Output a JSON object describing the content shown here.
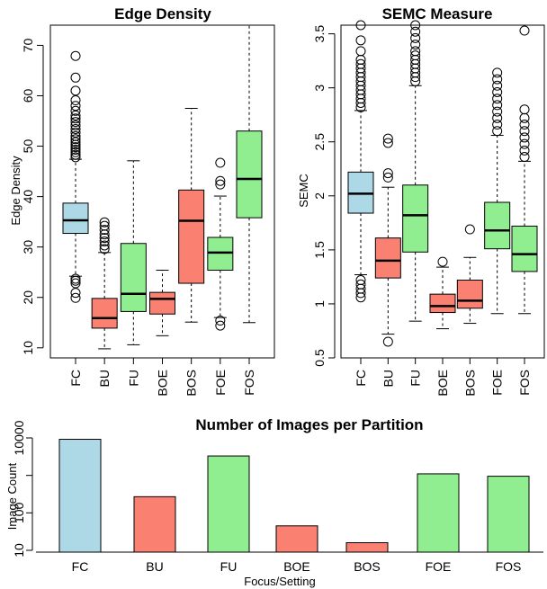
{
  "colors": {
    "FC": "#add8e6",
    "U": "#90ee90",
    "B": "#fa8072"
  },
  "chart_data": [
    {
      "type": "box",
      "title": "Edge Density",
      "ylabel": "Edge Density",
      "ylim": [
        8,
        74
      ],
      "yticks": [
        10,
        20,
        30,
        40,
        50,
        60,
        70
      ],
      "categories": [
        "FC",
        "BU",
        "FU",
        "BOE",
        "BOS",
        "FOE",
        "FOS"
      ],
      "fills": [
        "FC",
        "B",
        "U",
        "B",
        "B",
        "U",
        "U"
      ],
      "boxes": [
        {
          "q1": 32.7,
          "median": 35.3,
          "q3": 38.7,
          "low": 24.2,
          "high": 47.4,
          "outliers": [
            19.9,
            20.9,
            22.8,
            23.3,
            23.7,
            47.8,
            48.3,
            48.8,
            49.3,
            49.8,
            50.3,
            50.8,
            51.4,
            52.0,
            52.7,
            53.4,
            54.1,
            54.8,
            55.5,
            56.1,
            57.0,
            58.0,
            59.1,
            61.0,
            63.6,
            67.9
          ]
        },
        {
          "q1": 13.9,
          "median": 15.9,
          "q3": 19.8,
          "low": 9.8,
          "high": 28.9,
          "outliers": [
            29.6,
            30.3,
            31.1,
            31.8,
            32.5,
            33.4,
            34.2,
            34.9
          ]
        },
        {
          "q1": 17.2,
          "median": 20.7,
          "q3": 30.7,
          "low": 10.6,
          "high": 47.1,
          "outliers": []
        },
        {
          "q1": 16.7,
          "median": 19.7,
          "q3": 21.0,
          "low": 12.4,
          "high": 25.4,
          "outliers": []
        },
        {
          "q1": 22.8,
          "median": 35.2,
          "q3": 41.3,
          "low": 15.1,
          "high": 57.5,
          "outliers": []
        },
        {
          "q1": 25.4,
          "median": 28.9,
          "q3": 31.9,
          "low": 16.0,
          "high": 40.1,
          "outliers": [
            14.4,
            15.4,
            42.4,
            43.1,
            46.7
          ]
        },
        {
          "q1": 35.8,
          "median": 43.5,
          "q3": 53.0,
          "low": 15.0,
          "high": 74.0,
          "outliers": []
        }
      ]
    },
    {
      "type": "box",
      "title": "SEMC Measure",
      "ylabel": "SEMC",
      "ylim": [
        0.5,
        3.58
      ],
      "yticks": [
        0.5,
        1.0,
        1.5,
        2.0,
        2.5,
        3.0,
        3.5
      ],
      "categories": [
        "FC",
        "BU",
        "FU",
        "BOE",
        "BOS",
        "FOE",
        "FOS"
      ],
      "fills": [
        "FC",
        "B",
        "U",
        "B",
        "B",
        "U",
        "U"
      ],
      "boxes": [
        {
          "q1": 1.84,
          "median": 2.02,
          "q3": 2.22,
          "low": 1.27,
          "high": 2.79,
          "outliers": [
            1.06,
            1.1,
            1.14,
            1.18,
            1.22,
            2.82,
            2.86,
            2.9,
            2.94,
            2.98,
            3.02,
            3.06,
            3.1,
            3.14,
            3.18,
            3.22,
            3.26,
            3.34,
            3.44,
            3.58
          ]
        },
        {
          "q1": 1.24,
          "median": 1.4,
          "q3": 1.61,
          "low": 0.72,
          "high": 2.08,
          "outliers": [
            0.65,
            2.17,
            2.21,
            2.49,
            2.53
          ]
        },
        {
          "q1": 1.48,
          "median": 1.82,
          "q3": 2.1,
          "low": 0.84,
          "high": 3.02,
          "outliers": [
            3.06,
            3.1,
            3.14,
            3.18,
            3.22,
            3.26,
            3.3,
            3.34,
            3.4,
            3.46,
            3.52,
            3.58
          ]
        },
        {
          "q1": 0.92,
          "median": 0.98,
          "q3": 1.09,
          "low": 0.77,
          "high": 1.34,
          "outliers": [
            1.39
          ]
        },
        {
          "q1": 0.96,
          "median": 1.03,
          "q3": 1.22,
          "low": 0.82,
          "high": 1.43,
          "outliers": [
            1.69
          ]
        },
        {
          "q1": 1.51,
          "median": 1.68,
          "q3": 1.94,
          "low": 0.91,
          "high": 2.56,
          "outliers": [
            2.6,
            2.66,
            2.72,
            2.78,
            2.84,
            2.9,
            2.96,
            3.02,
            3.08,
            3.14
          ]
        },
        {
          "q1": 1.3,
          "median": 1.46,
          "q3": 1.72,
          "low": 0.91,
          "high": 2.32,
          "outliers": [
            2.36,
            2.42,
            2.48,
            2.54,
            2.6,
            2.66,
            2.72,
            2.8,
            3.53
          ]
        }
      ]
    },
    {
      "type": "bar",
      "title": "Number of Images per Partition",
      "xlabel": "Focus/Setting",
      "ylabel": "Image Count",
      "scale": "log",
      "ylim": [
        10,
        10000
      ],
      "yticks": [
        10,
        100,
        1000,
        10000
      ],
      "ytick_labels": [
        "10",
        "100",
        "",
        "10000"
      ],
      "categories": [
        "FC",
        "BU",
        "FU",
        "BOE",
        "BOS",
        "FOE",
        "FOS"
      ],
      "fills": [
        "FC",
        "B",
        "U",
        "B",
        "B",
        "U",
        "U"
      ],
      "values": [
        9200,
        270,
        3300,
        45,
        16,
        1100,
        950
      ]
    }
  ]
}
